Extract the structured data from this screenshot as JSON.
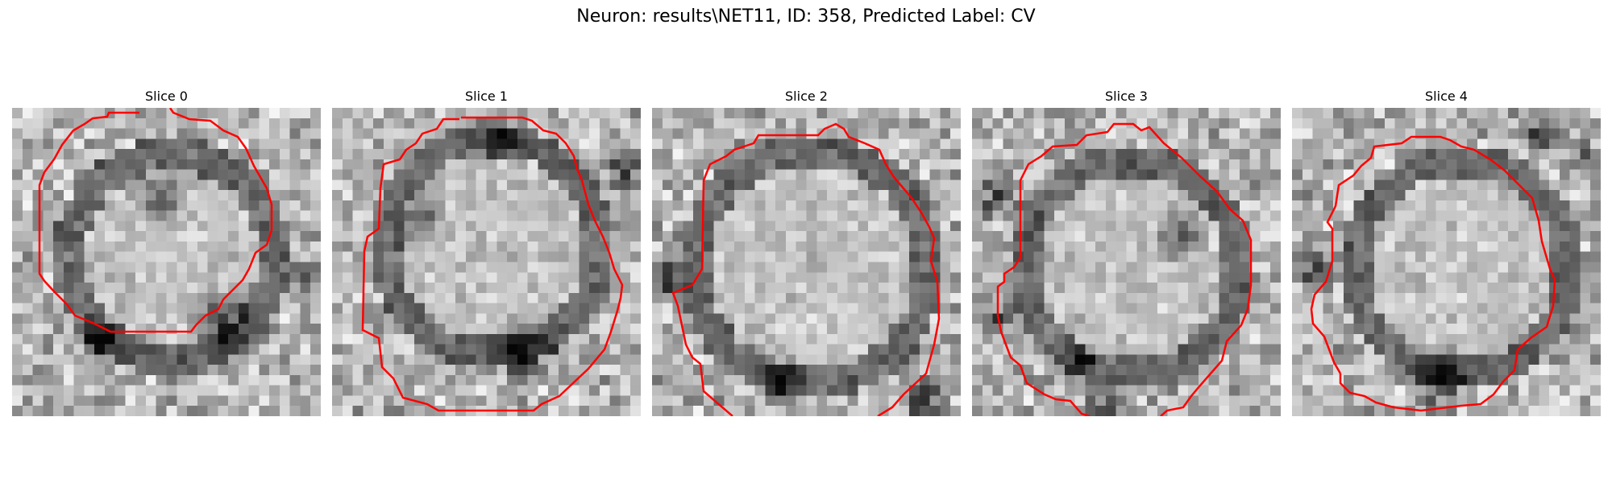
{
  "figure": {
    "title": "Neuron: results\\NET11, ID: 358, Predicted Label: CV"
  },
  "slices": [
    {
      "title": "Slice 0"
    },
    {
      "title": "Slice 1"
    },
    {
      "title": "Slice 2"
    },
    {
      "title": "Slice 3"
    },
    {
      "title": "Slice 4"
    }
  ],
  "colors": {
    "contour": "#ff0000",
    "colormap": "grayscale"
  }
}
